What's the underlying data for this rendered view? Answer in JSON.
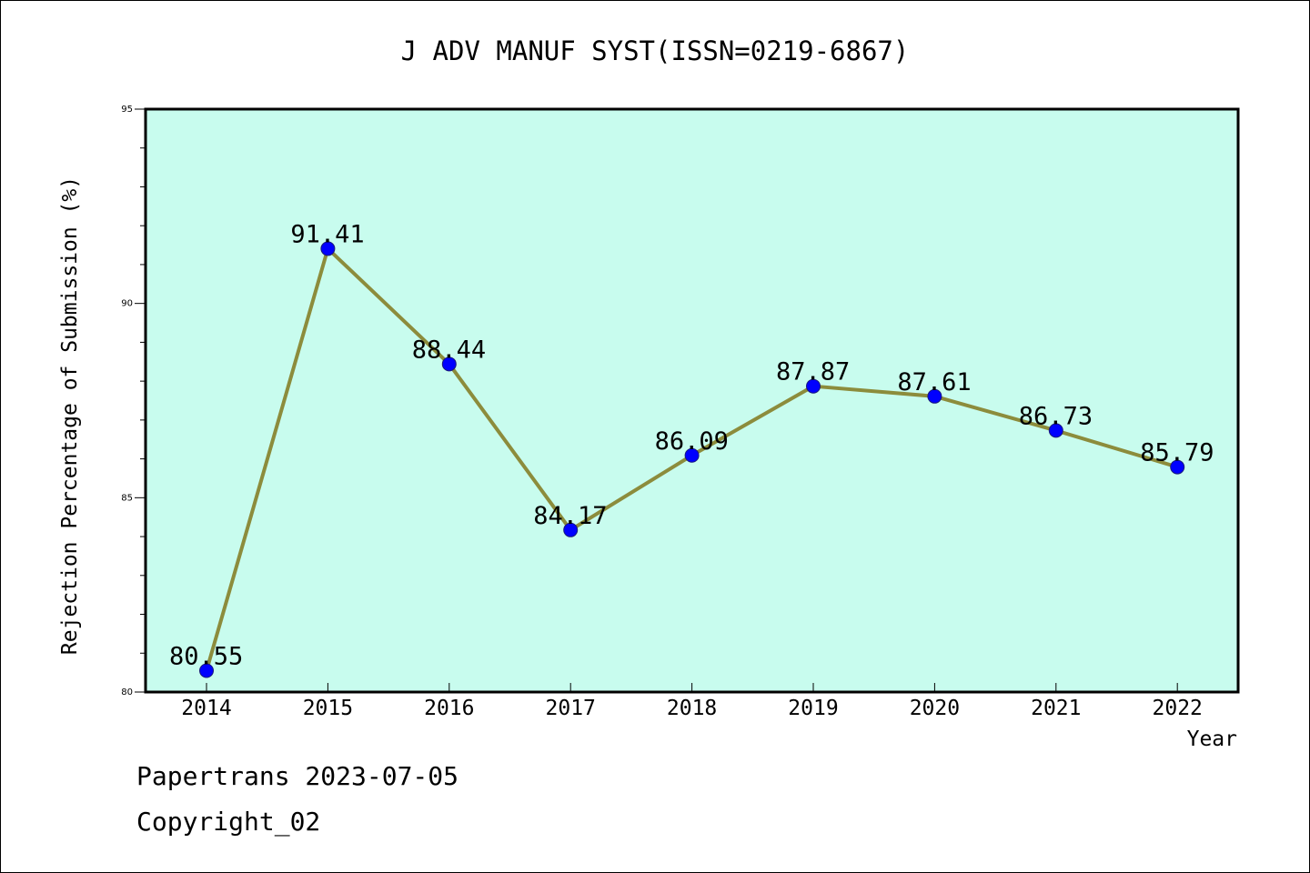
{
  "chart_data": {
    "type": "line",
    "title": "J ADV MANUF SYST(ISSN=0219-6867)",
    "xlabel": "Year",
    "ylabel": "Rejection Percentage of Submission (%)",
    "categories": [
      "2014",
      "2015",
      "2016",
      "2017",
      "2018",
      "2019",
      "2020",
      "2021",
      "2022"
    ],
    "values": [
      80.55,
      91.41,
      88.44,
      84.17,
      86.09,
      87.87,
      87.61,
      86.73,
      85.79
    ],
    "data_labels": [
      "80.55",
      "91.41",
      "88.44",
      "84.17",
      "86.09",
      "87.87",
      "87.61",
      "86.73",
      "85.79"
    ],
    "ylim": [
      80,
      95
    ],
    "y_major_ticks": [
      80,
      85,
      90,
      95
    ],
    "y_minor_step": 1,
    "grid": false,
    "legend": "none",
    "colors": {
      "plot_background": "#c8fcee",
      "line": "#8c8c3c",
      "marker": "#0000ff",
      "marker_edge": "#1a1a7a",
      "axis": "#000000"
    }
  },
  "footer": {
    "line1": "Papertrans 2023-07-05",
    "line2": "Copyright_02"
  }
}
